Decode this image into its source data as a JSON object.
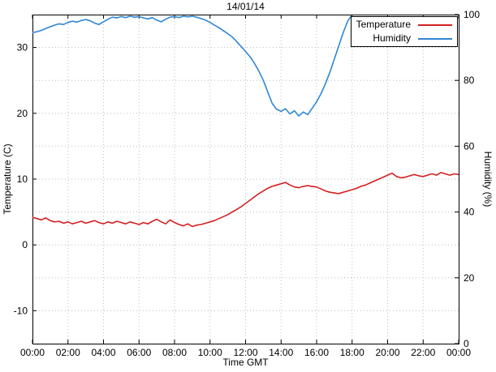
{
  "chart_data": {
    "type": "line",
    "title": "14/01/14",
    "grid": true,
    "x_axis": {
      "label": "Time GMT",
      "range_hours": [
        0,
        24
      ],
      "ticks_hours": [
        0,
        2,
        4,
        6,
        8,
        10,
        12,
        14,
        16,
        18,
        20,
        22,
        24
      ],
      "tick_labels": [
        "00:00",
        "02:00",
        "04:00",
        "06:00",
        "08:00",
        "10:00",
        "12:00",
        "14:00",
        "16:00",
        "18:00",
        "20:00",
        "22:00",
        "00:00"
      ]
    },
    "y_left": {
      "label": "Temperature (C)",
      "range": [
        -15,
        35
      ],
      "ticks": [
        -10,
        0,
        10,
        20,
        30
      ]
    },
    "y_right": {
      "label": "Humidity (%)",
      "range": [
        0,
        100
      ],
      "ticks": [
        0,
        20,
        40,
        60,
        80,
        100
      ]
    },
    "legend": {
      "position": "top-right",
      "boxed": true
    },
    "x_start_hours": 0,
    "x_step_hours": 0.25,
    "series": [
      {
        "name": "Temperature",
        "axis": "left",
        "color": "#d42020",
        "values": [
          4.2,
          4.0,
          3.8,
          4.1,
          3.7,
          3.5,
          3.6,
          3.3,
          3.5,
          3.2,
          3.4,
          3.6,
          3.3,
          3.5,
          3.7,
          3.4,
          3.2,
          3.5,
          3.3,
          3.6,
          3.4,
          3.2,
          3.5,
          3.3,
          3.1,
          3.4,
          3.2,
          3.6,
          3.9,
          3.5,
          3.2,
          3.8,
          3.4,
          3.1,
          2.9,
          3.2,
          2.8,
          3.0,
          3.1,
          3.3,
          3.5,
          3.7,
          4.0,
          4.3,
          4.6,
          5.0,
          5.4,
          5.8,
          6.3,
          6.8,
          7.3,
          7.8,
          8.2,
          8.6,
          8.9,
          9.1,
          9.3,
          9.5,
          9.1,
          8.8,
          8.7,
          8.9,
          9.0,
          8.9,
          8.8,
          8.5,
          8.2,
          8.0,
          7.9,
          7.8,
          8.0,
          8.2,
          8.4,
          8.6,
          8.9,
          9.1,
          9.4,
          9.7,
          10.0,
          10.3,
          10.6,
          10.9,
          10.4,
          10.2,
          10.3,
          10.5,
          10.7,
          10.5,
          10.4,
          10.6,
          10.8,
          10.6,
          11.0,
          10.8,
          10.6,
          10.8,
          10.7
        ]
      },
      {
        "name": "Humidity",
        "axis": "right",
        "color": "#2f86d4",
        "values": [
          94.5,
          94.8,
          95.2,
          95.8,
          96.3,
          96.8,
          97.2,
          97.0,
          97.6,
          98.0,
          97.7,
          98.2,
          98.5,
          98.1,
          97.4,
          97.0,
          97.8,
          98.6,
          99.2,
          99.0,
          99.4,
          99.1,
          99.5,
          99.2,
          99.4,
          99.0,
          98.7,
          99.1,
          98.3,
          97.8,
          98.6,
          99.2,
          99.4,
          99.1,
          99.5,
          99.3,
          99.5,
          99.2,
          98.8,
          98.3,
          97.6,
          96.8,
          96.0,
          95.1,
          94.2,
          93.2,
          91.8,
          90.3,
          88.8,
          87.2,
          85.2,
          82.8,
          80.0,
          76.5,
          73.0,
          71.2,
          70.6,
          71.4,
          69.8,
          70.8,
          69.2,
          70.4,
          69.6,
          71.5,
          73.5,
          76.0,
          79.0,
          82.5,
          86.5,
          90.5,
          94.5,
          98.0,
          100.0,
          100.0,
          100.0,
          100.0,
          100.0,
          100.0,
          100.0,
          100.0,
          100.0,
          100.0,
          100.0,
          100.0,
          100.0,
          100.0,
          100.0,
          100.0,
          100.0,
          100.0,
          100.0,
          100.0,
          100.0,
          100.0,
          100.0,
          100.0,
          100.0
        ]
      }
    ],
    "style": {
      "grid_color": "#bdbdbd",
      "border_color": "#000000",
      "background": "#ffffff",
      "line_width": 1.6
    }
  }
}
